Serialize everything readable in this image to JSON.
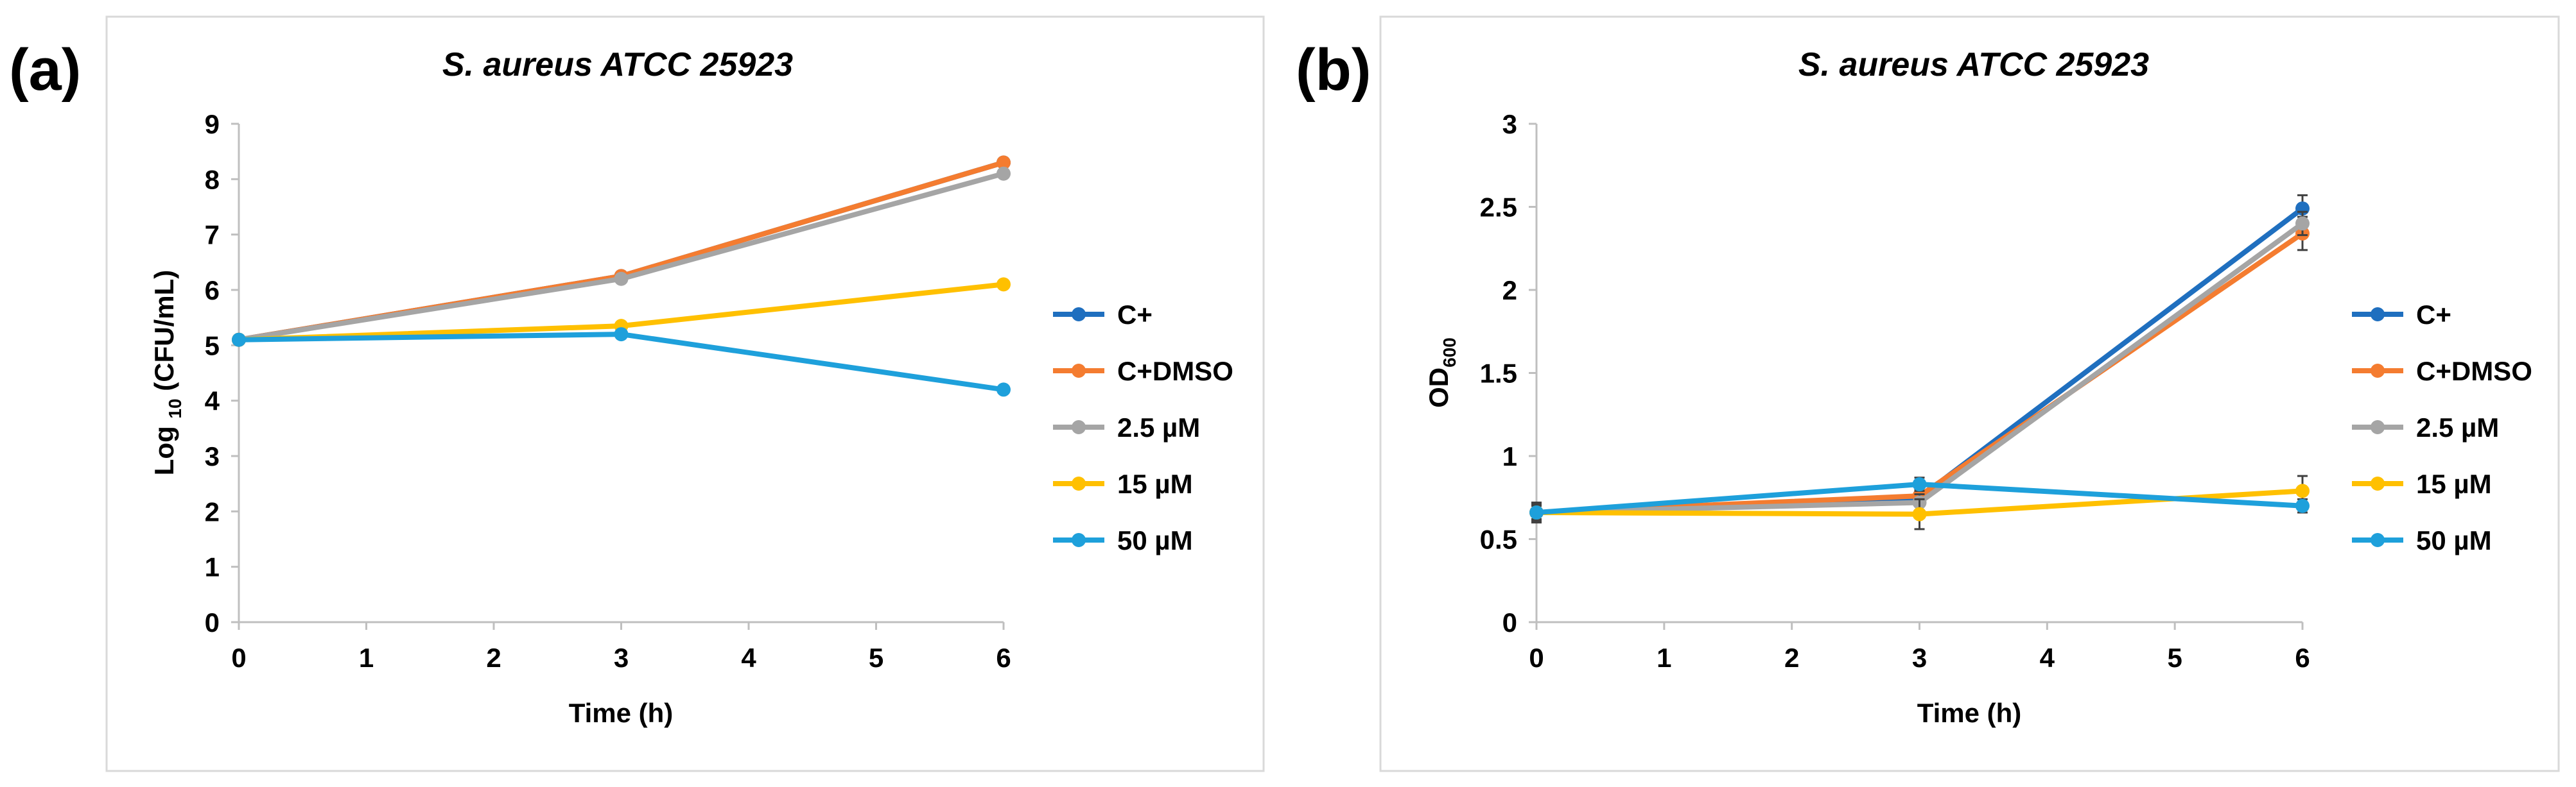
{
  "chart_data": [
    {
      "panel_label": "(a)",
      "type": "line",
      "title": "S. aureus ATCC 25923",
      "xlabel": "Time (h)",
      "ylabel": {
        "prefix": "Log ",
        "sub": "10",
        "suffix": " (CFU/mL)"
      },
      "xlim": [
        0,
        6
      ],
      "ylim": [
        0,
        9
      ],
      "x_ticks": [
        "0",
        "1",
        "2",
        "3",
        "4",
        "5",
        "6"
      ],
      "y_ticks": [
        "0",
        "1",
        "2",
        "3",
        "4",
        "5",
        "6",
        "7",
        "8",
        "9"
      ],
      "x": [
        0,
        3,
        6
      ],
      "series": [
        {
          "name": "C+",
          "color": "#1f6fbf",
          "values": [
            5.1,
            6.25,
            8.3
          ]
        },
        {
          "name": "C+DMSO",
          "color": "#f47c30",
          "values": [
            5.1,
            6.25,
            8.3
          ]
        },
        {
          "name": "2.5 µM",
          "color": "#a5a5a5",
          "values": [
            5.1,
            6.2,
            8.1
          ]
        },
        {
          "name": "15 µM",
          "color": "#ffc000",
          "values": [
            5.1,
            5.35,
            6.1
          ]
        },
        {
          "name": "50 µM",
          "color": "#1ea0db",
          "values": [
            5.1,
            5.2,
            4.2
          ]
        }
      ],
      "legend_position": "right"
    },
    {
      "panel_label": "(b)",
      "type": "line",
      "title": "S. aureus ATCC 25923",
      "xlabel": "Time (h)",
      "ylabel": {
        "prefix": "OD",
        "sub": "600",
        "suffix": ""
      },
      "xlim": [
        0,
        6
      ],
      "ylim": [
        0,
        3
      ],
      "x_ticks": [
        "0",
        "1",
        "2",
        "3",
        "4",
        "5",
        "6"
      ],
      "y_ticks": [
        "0",
        "0.5",
        "1",
        "1.5",
        "2",
        "2.5",
        "3"
      ],
      "x": [
        0,
        3,
        6
      ],
      "series": [
        {
          "name": "C+",
          "color": "#1f6fbf",
          "values": [
            0.66,
            0.75,
            2.49
          ],
          "errors": [
            0.06,
            0.05,
            0.08
          ]
        },
        {
          "name": "C+DMSO",
          "color": "#f47c30",
          "values": [
            0.66,
            0.76,
            2.34
          ],
          "errors": [
            0.05,
            0.05,
            0.1
          ]
        },
        {
          "name": "2.5 µM",
          "color": "#a5a5a5",
          "values": [
            0.66,
            0.72,
            2.4
          ],
          "errors": [
            0.05,
            0.05,
            0.07
          ]
        },
        {
          "name": "15 µM",
          "color": "#ffc000",
          "values": [
            0.66,
            0.65,
            0.79
          ],
          "errors": [
            0.04,
            0.09,
            0.09
          ]
        },
        {
          "name": "50 µM",
          "color": "#1ea0db",
          "values": [
            0.66,
            0.83,
            0.7
          ],
          "errors": [
            0.05,
            0.04,
            0.04
          ]
        }
      ],
      "legend_position": "right"
    }
  ]
}
